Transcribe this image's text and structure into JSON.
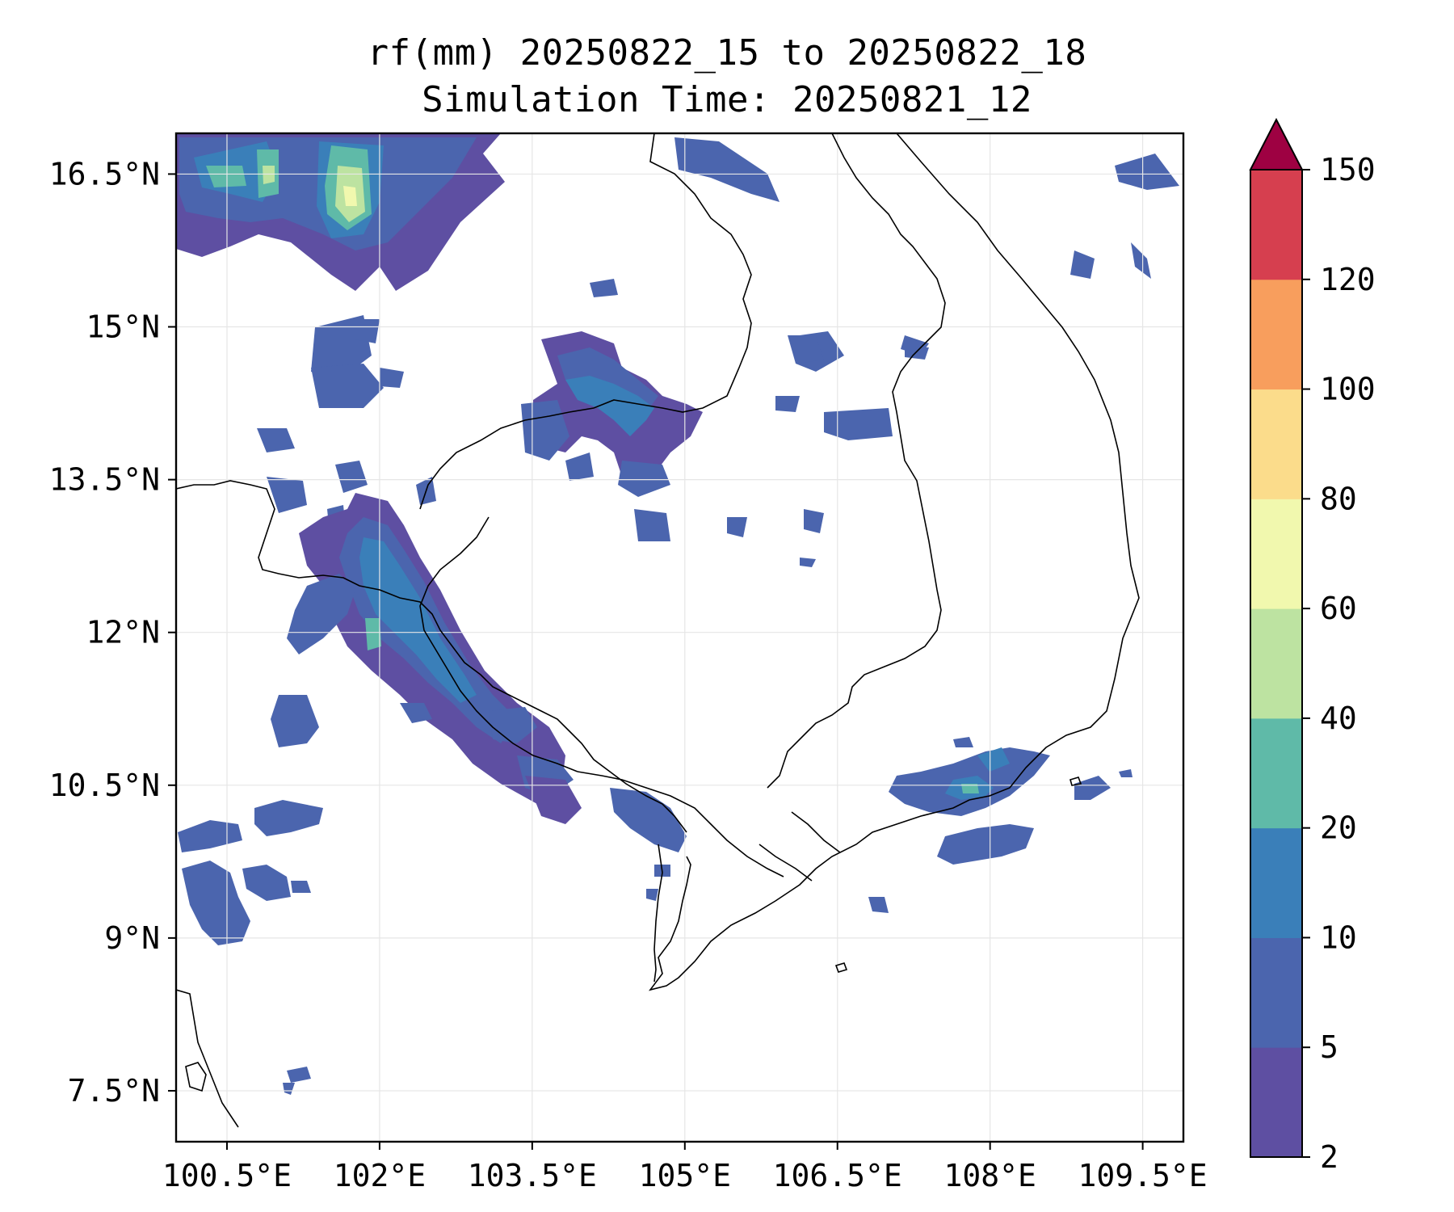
{
  "title": {
    "line1": "rf(mm) 20250822_15 to 20250822_18",
    "line2": "Simulation Time: 20250821_12"
  },
  "map": {
    "lon_range": [
      100.0,
      109.9
    ],
    "lat_range": [
      7.0,
      16.9
    ],
    "lat_ticks": [
      {
        "value": 16.5,
        "label": "16.5°N"
      },
      {
        "value": 15.0,
        "label": "15°N"
      },
      {
        "value": 13.5,
        "label": "13.5°N"
      },
      {
        "value": 12.0,
        "label": "12°N"
      },
      {
        "value": 10.5,
        "label": "10.5°N"
      },
      {
        "value": 9.0,
        "label": "9°N"
      },
      {
        "value": 7.5,
        "label": "7.5°N"
      }
    ],
    "lon_ticks": [
      {
        "value": 100.5,
        "label": "100.5°E"
      },
      {
        "value": 102.0,
        "label": "102°E"
      },
      {
        "value": 103.5,
        "label": "103.5°E"
      },
      {
        "value": 105.0,
        "label": "105°E"
      },
      {
        "value": 106.5,
        "label": "106.5°E"
      },
      {
        "value": 108.0,
        "label": "108°E"
      },
      {
        "value": 109.5,
        "label": "109.5°E"
      }
    ],
    "grid": true
  },
  "colorbar": {
    "levels": [
      "2",
      "5",
      "10",
      "20",
      "40",
      "60",
      "80",
      "100",
      "120",
      "150"
    ],
    "colors": [
      "#5e4fa2",
      "#4b65ae",
      "#3a7fb9",
      "#5fbaa8",
      "#bde3a1",
      "#f1f8ae",
      "#fbdc8b",
      "#f89e5d",
      "#d63f4f"
    ],
    "extend_color": "#9e0142"
  },
  "colors": {
    "c1": "#5e4fa2",
    "c2": "#4b65ae",
    "c3": "#3a7fb9",
    "c4": "#5fbaa8",
    "c5": "#bde3a1",
    "c6": "#f1f8ae"
  }
}
